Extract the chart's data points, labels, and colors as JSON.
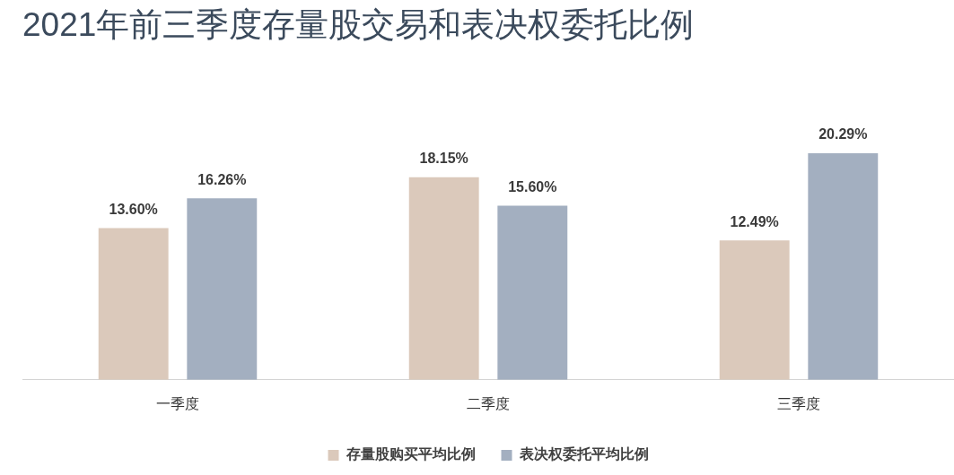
{
  "chart_data": {
    "type": "bar",
    "title": "2021年前三季度存量股交易和表决权委托比例",
    "categories": [
      "一季度",
      "二季度",
      "三季度"
    ],
    "series": [
      {
        "name": "存量股购买平均比例",
        "color": "#dbc9bb",
        "values": [
          13.6,
          18.15,
          12.49
        ],
        "value_labels": [
          "13.60%",
          "18.15%",
          "12.49%"
        ]
      },
      {
        "name": "表决权委托平均比例",
        "color": "#a3afc0",
        "values": [
          16.26,
          15.6,
          20.29
        ],
        "value_labels": [
          "16.26%",
          "15.60%",
          "20.29%"
        ]
      }
    ],
    "legend": "bottom"
  }
}
